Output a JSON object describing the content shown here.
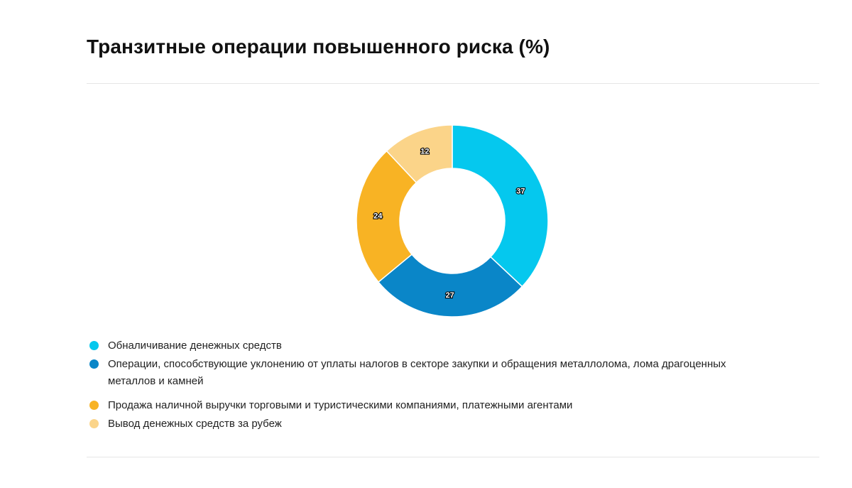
{
  "chart_data": {
    "type": "pie",
    "donut": true,
    "title": "Транзитные операции повышенного риска (%)",
    "categories": [
      "Обналичивание денежных средств",
      "Операции, способствующие уклонению от уплаты налогов в секторе закупки и обращения металлолома, лома драгоценных металлов и камней",
      "Продажа наличной выручки торговыми и туристическими компаниями, платежными агентами",
      "Вывод денежных средств за рубеж"
    ],
    "values": [
      37,
      27,
      24,
      12
    ],
    "colors": [
      "#05c8ee",
      "#0a86c8",
      "#f8b324",
      "#fbd489"
    ],
    "data_labels": [
      "37",
      "27",
      "24",
      "12"
    ],
    "legend_position": "bottom-left"
  }
}
